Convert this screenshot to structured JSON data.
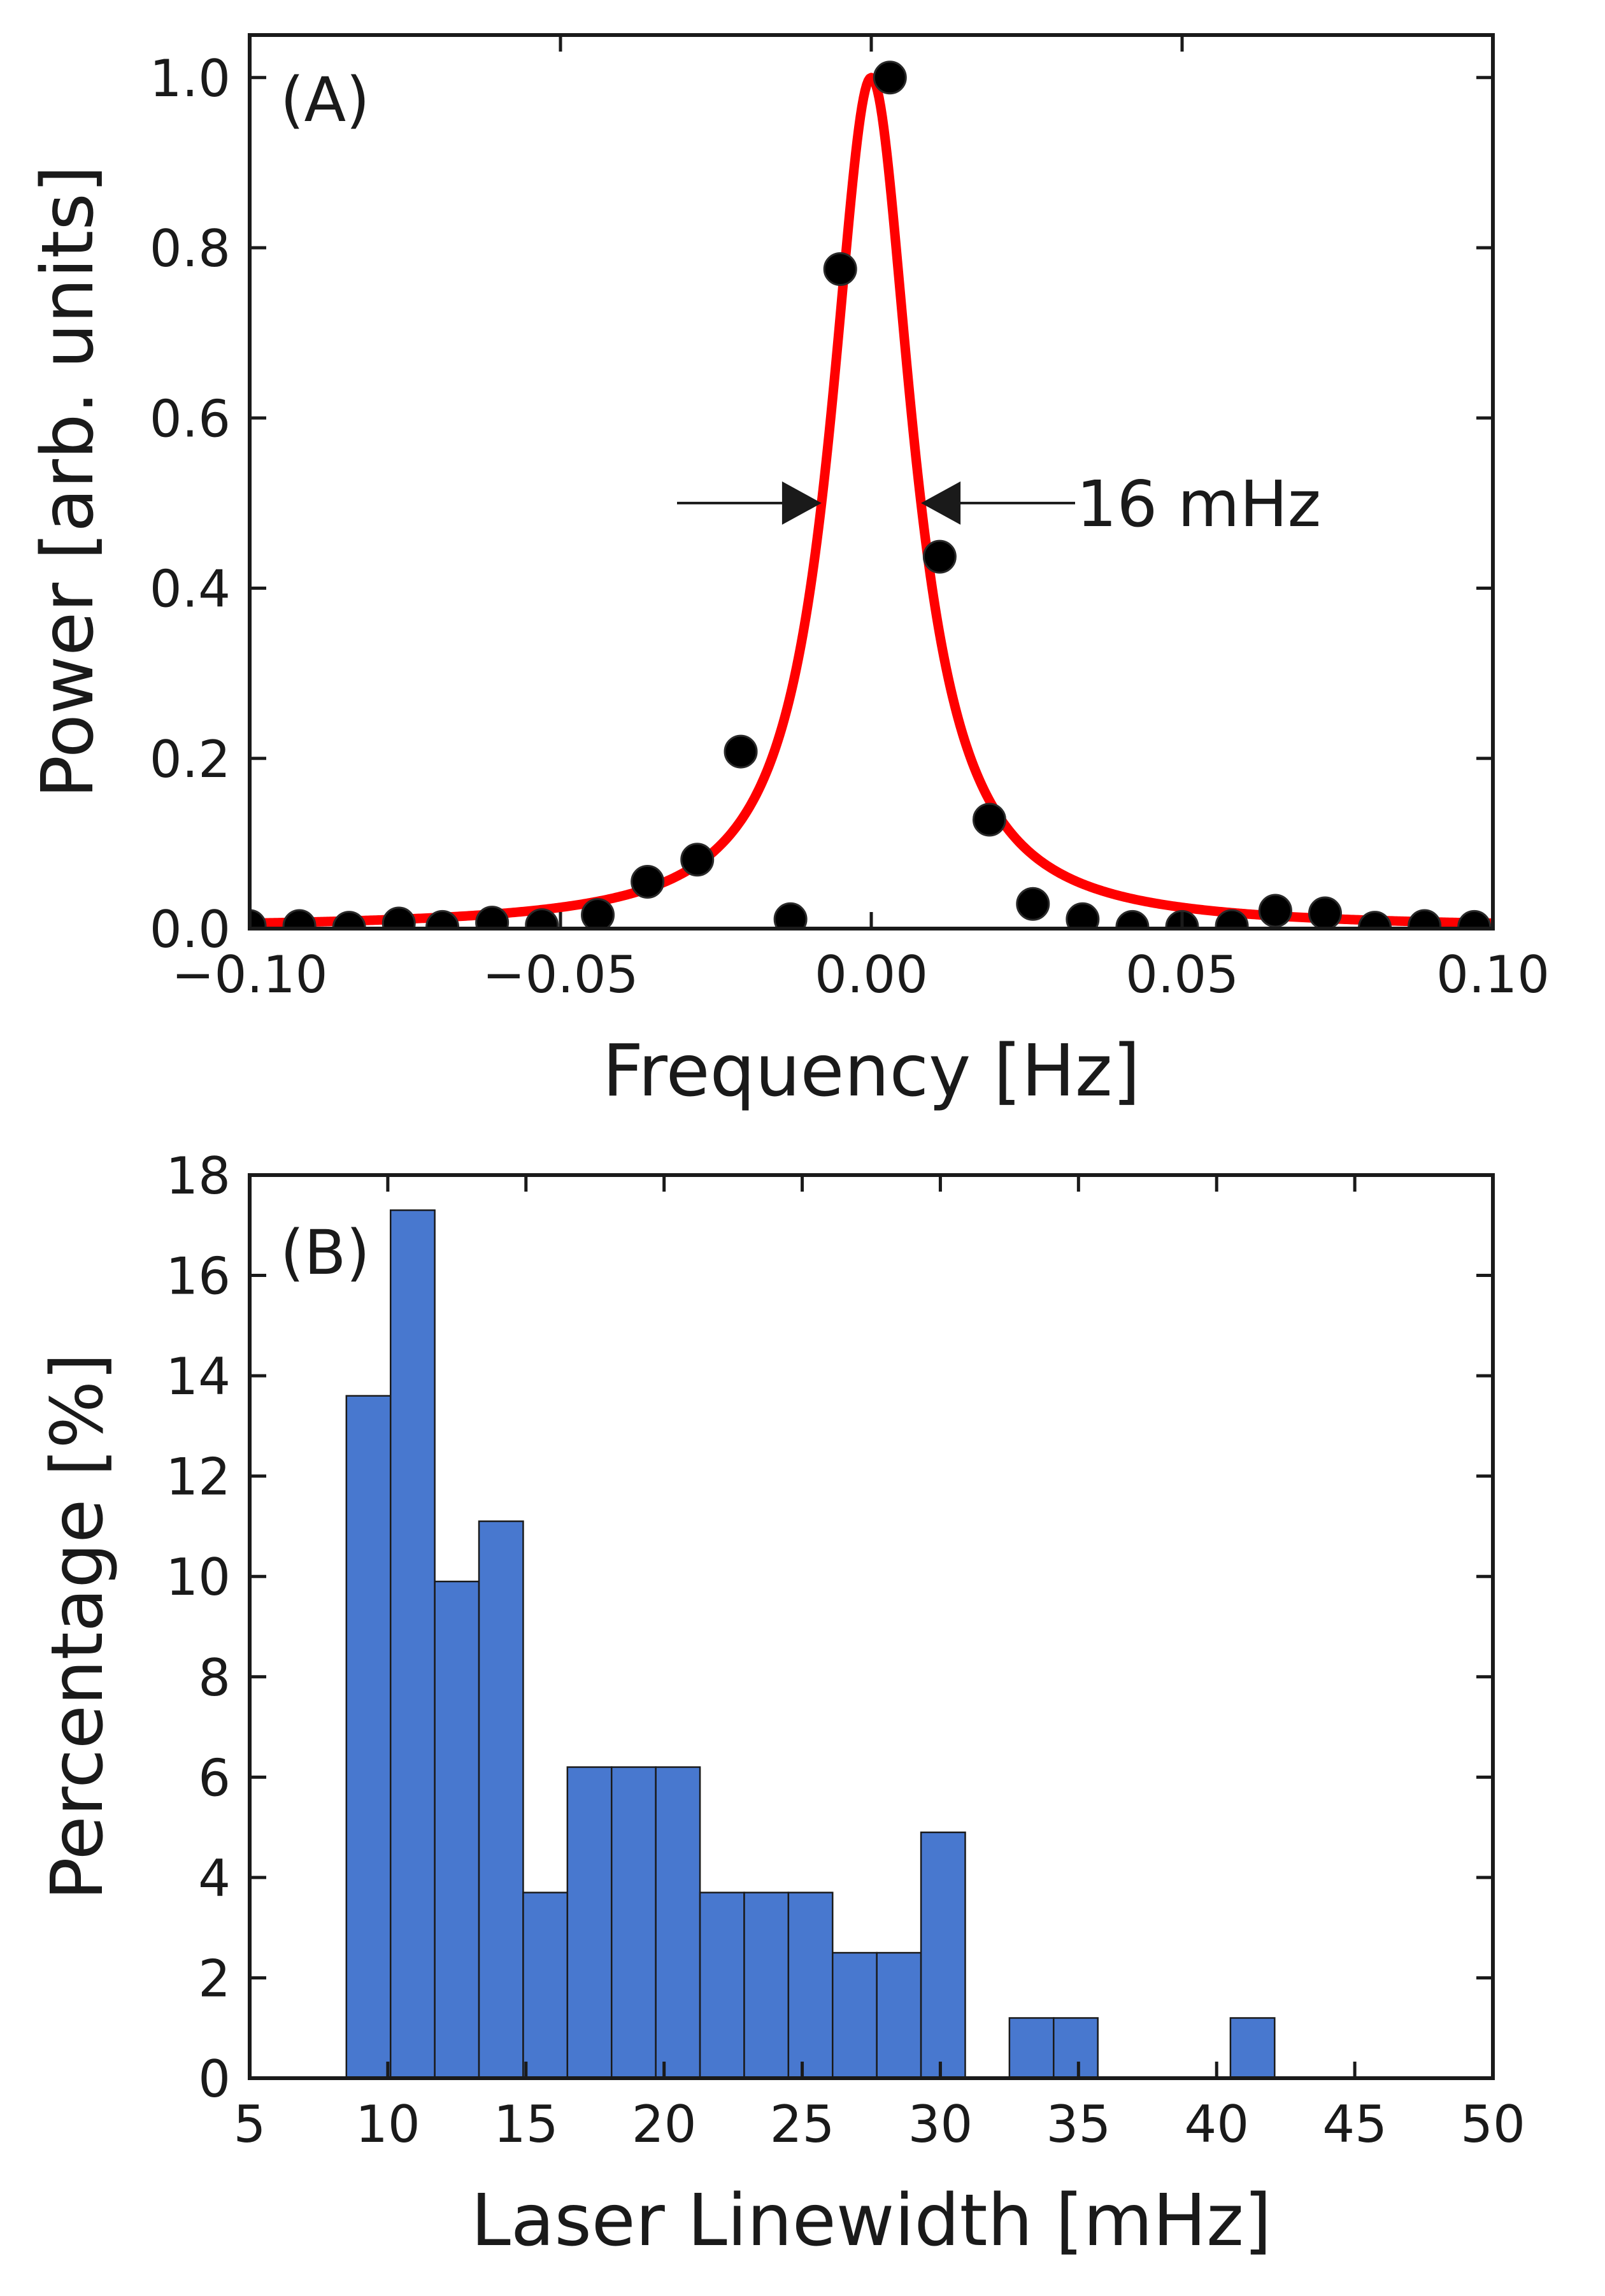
{
  "chart_data": [
    {
      "panel": "(A)",
      "type": "scatter",
      "xlabel": "Frequency [Hz]",
      "ylabel": "Power [arb. units]",
      "xlim": [
        -0.1,
        0.1
      ],
      "ylim": [
        0,
        1.05
      ],
      "xticks": [
        -0.1,
        -0.05,
        0.0,
        0.05,
        0.1
      ],
      "xtick_labels": [
        "−0.10",
        "−0.05",
        "0.00",
        "0.05",
        "0.10"
      ],
      "yticks": [
        0,
        0.2,
        0.4,
        0.6,
        0.8,
        1.0
      ],
      "ytick_labels": [
        "0.0",
        "0.2",
        "0.4",
        "0.6",
        "0.8",
        "1.0"
      ],
      "grid": false,
      "points_color": "#000000",
      "fit_color": "#ff0000",
      "fit": {
        "type": "lorentzian",
        "center": 0.0,
        "fwhm": 0.016,
        "amplitude": 1.0
      },
      "annotation": {
        "text": "16 mHz",
        "y": 0.5,
        "x_left": -0.008,
        "x_right": 0.008
      },
      "points": [
        {
          "x": -0.1,
          "y": 0.003
        },
        {
          "x": -0.092,
          "y": 0.003
        },
        {
          "x": -0.084,
          "y": 0.001
        },
        {
          "x": -0.076,
          "y": 0.006
        },
        {
          "x": -0.069,
          "y": 0.002
        },
        {
          "x": -0.061,
          "y": 0.007
        },
        {
          "x": -0.053,
          "y": 0.004
        },
        {
          "x": -0.044,
          "y": 0.016
        },
        {
          "x": -0.036,
          "y": 0.055
        },
        {
          "x": -0.028,
          "y": 0.081
        },
        {
          "x": -0.021,
          "y": 0.208
        },
        {
          "x": -0.013,
          "y": 0.011
        },
        {
          "x": -0.005,
          "y": 0.775
        },
        {
          "x": 0.003,
          "y": 1.0
        },
        {
          "x": 0.011,
          "y": 0.437
        },
        {
          "x": 0.019,
          "y": 0.128
        },
        {
          "x": 0.026,
          "y": 0.029
        },
        {
          "x": 0.034,
          "y": 0.011
        },
        {
          "x": 0.042,
          "y": 0.002
        },
        {
          "x": 0.05,
          "y": 0.002
        },
        {
          "x": 0.058,
          "y": 0.003
        },
        {
          "x": 0.065,
          "y": 0.021
        },
        {
          "x": 0.073,
          "y": 0.018
        },
        {
          "x": 0.081,
          "y": 0.001
        },
        {
          "x": 0.089,
          "y": 0.003
        },
        {
          "x": 0.097,
          "y": 0.002
        }
      ]
    },
    {
      "panel": "(B)",
      "type": "bar",
      "xlabel": "Laser Linewidth [mHz]",
      "ylabel": "Percentage [%]",
      "xlim": [
        5,
        50
      ],
      "ylim": [
        0,
        18
      ],
      "xticks": [
        5,
        10,
        15,
        20,
        25,
        30,
        35,
        40,
        45,
        50
      ],
      "xtick_labels": [
        "5",
        "10",
        "15",
        "20",
        "25",
        "30",
        "35",
        "40",
        "45",
        "50"
      ],
      "yticks": [
        0,
        2,
        4,
        6,
        8,
        10,
        12,
        14,
        16,
        18
      ],
      "ytick_labels": [
        "0",
        "2",
        "4",
        "6",
        "8",
        "10",
        "12",
        "14",
        "16",
        "18"
      ],
      "grid": false,
      "bar_color": "#4878cf",
      "bin_edges": [
        8.5,
        10.1,
        11.7,
        13.3,
        14.9,
        16.5,
        18.1,
        19.7,
        21.3,
        22.9,
        24.5,
        26.1,
        27.7,
        29.3,
        30.9,
        32.5,
        34.1,
        35.7,
        37.3,
        38.9,
        40.5,
        42.1
      ],
      "values": [
        13.6,
        17.3,
        9.9,
        11.1,
        3.7,
        6.2,
        6.2,
        6.2,
        3.7,
        3.7,
        3.7,
        2.5,
        2.5,
        4.9,
        0,
        1.2,
        1.2,
        0,
        0,
        0,
        1.2
      ]
    }
  ]
}
